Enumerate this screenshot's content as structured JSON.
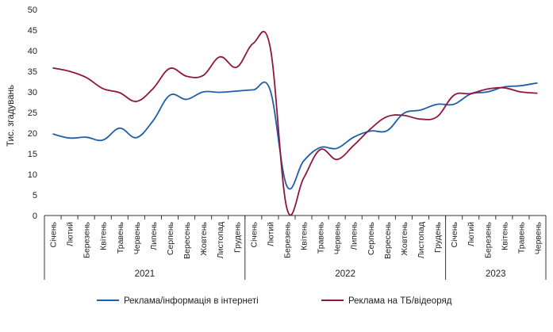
{
  "chart_data": {
    "type": "line",
    "ylabel": "Тис. згадувань",
    "ylim": [
      0,
      50
    ],
    "yticks": [
      0,
      5,
      10,
      15,
      20,
      25,
      30,
      35,
      40,
      45,
      50
    ],
    "grid": false,
    "legend_position": "bottom",
    "categories": [
      "Січень",
      "Лютий",
      "Березень",
      "Квітень",
      "Травень",
      "Червень",
      "Липень",
      "Серпень",
      "Вересень",
      "Жовтень",
      "Листопад",
      "Грудень",
      "Січень",
      "Лютий",
      "Березень",
      "Квітень",
      "Травень",
      "Червень",
      "Липень",
      "Серпень",
      "Вересень",
      "Жовтень",
      "Листопад",
      "Грудень",
      "Січень",
      "Лютий",
      "Березень",
      "Квітень",
      "Травень",
      "Червень"
    ],
    "year_groups": [
      {
        "label": "2021",
        "count": 12
      },
      {
        "label": "2022",
        "count": 12
      },
      {
        "label": "2023",
        "count": 6
      }
    ],
    "series": [
      {
        "name": "Реклама/інформація в інтернеті",
        "color": "#1f5fa6",
        "values": [
          19.8,
          18.8,
          19.0,
          18.3,
          21.2,
          18.9,
          23.0,
          29.2,
          28.2,
          30.0,
          29.9,
          30.2,
          30.5,
          30.5,
          7.2,
          13.2,
          16.5,
          16.3,
          19.0,
          20.5,
          20.6,
          24.8,
          25.6,
          27.0,
          27.0,
          29.5,
          30.0,
          31.2,
          31.5,
          32.2
        ]
      },
      {
        "name": "Реклама на ТБ/відеоряд",
        "color": "#8e1640",
        "values": [
          35.8,
          35.0,
          33.5,
          30.8,
          29.8,
          27.7,
          30.8,
          35.7,
          33.8,
          34.0,
          38.5,
          36.0,
          41.8,
          41.0,
          1.8,
          9.0,
          16.0,
          13.6,
          17.0,
          21.0,
          24.0,
          24.3,
          23.4,
          24.0,
          29.2,
          29.6,
          30.7,
          31.0,
          30.0,
          29.7
        ]
      }
    ]
  }
}
